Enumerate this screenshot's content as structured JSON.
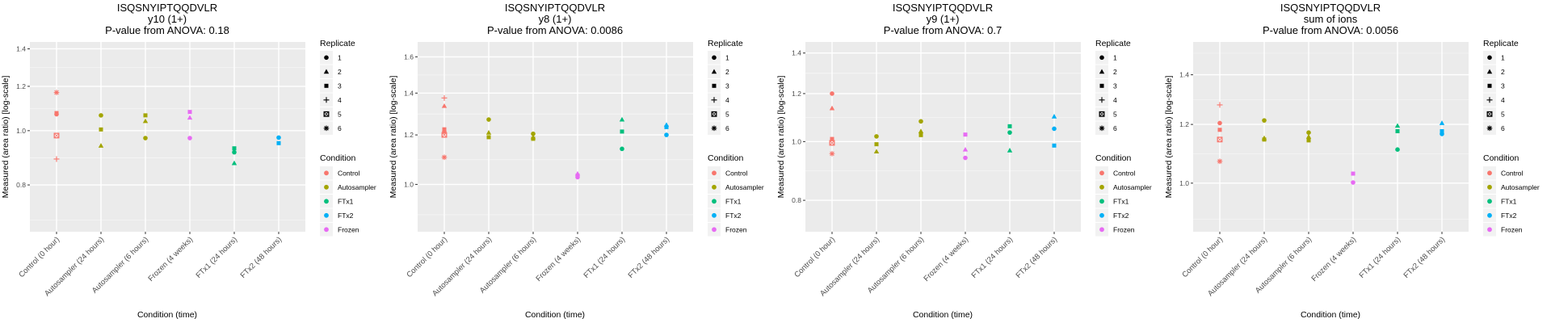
{
  "legend": {
    "replicate_title": "Replicate",
    "replicates": [
      {
        "label": "1",
        "shape": "circle"
      },
      {
        "label": "2",
        "shape": "triangle"
      },
      {
        "label": "3",
        "shape": "square"
      },
      {
        "label": "4",
        "shape": "plus"
      },
      {
        "label": "5",
        "shape": "square-cross"
      },
      {
        "label": "6",
        "shape": "asterisk"
      }
    ],
    "condition_title": "Condition",
    "conditions": [
      {
        "label": "Control",
        "color": "#F8766D"
      },
      {
        "label": "Autosampler",
        "color": "#A3A500"
      },
      {
        "label": "FTx1",
        "color": "#00BF7D"
      },
      {
        "label": "FTx2",
        "color": "#00B0F6"
      },
      {
        "label": "Frozen",
        "color": "#E76BF3"
      }
    ]
  },
  "chart_data": [
    {
      "type": "scatter",
      "title": "ISQSNYIPTQQDVLR",
      "subtitle": "y10 (1+)",
      "pvalue_label": "P-value from ANOVA: 0.18",
      "xlabel": "Condition (time)",
      "ylabel": "Measured (area ratio) [log-scale]",
      "yscale": "log",
      "ylim": [
        0.66,
        1.44
      ],
      "yticks": [
        0.8,
        1.0,
        1.2,
        1.4
      ],
      "ytick_labels": [
        "0.8",
        "1.0",
        "1.2",
        "1.4"
      ],
      "categories": [
        "Control (0 hour)",
        "Autosampler (24 hours)",
        "Autosampler (6 hours)",
        "Frozen (4 weeks)",
        "FTx1 (24 hours)",
        "FTx2 (48 hours)"
      ],
      "category_condition": [
        "Control",
        "Autosampler",
        "Autosampler",
        "Frozen",
        "FTx1",
        "FTx2"
      ],
      "points": [
        {
          "x": 0,
          "replicate": "6",
          "y": 1.17
        },
        {
          "x": 0,
          "replicate": "1",
          "y": 1.07
        },
        {
          "x": 0,
          "replicate": "3",
          "y": 1.075
        },
        {
          "x": 0,
          "replicate": "5",
          "y": 0.98
        },
        {
          "x": 0,
          "replicate": "4",
          "y": 0.89
        },
        {
          "x": 1,
          "replicate": "1",
          "y": 1.065
        },
        {
          "x": 1,
          "replicate": "3",
          "y": 1.005
        },
        {
          "x": 1,
          "replicate": "2",
          "y": 0.94
        },
        {
          "x": 2,
          "replicate": "3",
          "y": 1.065
        },
        {
          "x": 2,
          "replicate": "2",
          "y": 1.04
        },
        {
          "x": 2,
          "replicate": "1",
          "y": 0.97
        },
        {
          "x": 3,
          "replicate": "3",
          "y": 1.08
        },
        {
          "x": 3,
          "replicate": "2",
          "y": 1.055
        },
        {
          "x": 3,
          "replicate": "1",
          "y": 0.97
        },
        {
          "x": 4,
          "replicate": "3",
          "y": 0.93
        },
        {
          "x": 4,
          "replicate": "1",
          "y": 0.915
        },
        {
          "x": 4,
          "replicate": "2",
          "y": 0.875
        },
        {
          "x": 5,
          "replicate": "1",
          "y": 0.972
        },
        {
          "x": 5,
          "replicate": "3",
          "y": 0.95
        }
      ]
    },
    {
      "type": "scatter",
      "title": "ISQSNYIPTQQDVLR",
      "subtitle": "y8 (1+)",
      "pvalue_label": "P-value from ANOVA: 0.0086",
      "xlabel": "Condition (time)",
      "ylabel": "Measured (area ratio) [log-scale]",
      "yscale": "log",
      "ylim": [
        0.84,
        1.69
      ],
      "yticks": [
        1.0,
        1.2,
        1.4,
        1.6
      ],
      "ytick_labels": [
        "1.0",
        "1.2",
        "1.4",
        "1.6"
      ],
      "categories": [
        "Control (0 hour)",
        "Autosampler (24 hours)",
        "Autosampler (6 hours)",
        "Frozen (4 weeks)",
        "FTx1 (24 hours)",
        "FTx2 (48 hours)"
      ],
      "category_condition": [
        "Control",
        "Autosampler",
        "Autosampler",
        "Frozen",
        "FTx1",
        "FTx2"
      ],
      "points": [
        {
          "x": 0,
          "replicate": "4",
          "y": 1.375
        },
        {
          "x": 0,
          "replicate": "2",
          "y": 1.335
        },
        {
          "x": 0,
          "replicate": "3",
          "y": 1.225
        },
        {
          "x": 0,
          "replicate": "1",
          "y": 1.215
        },
        {
          "x": 0,
          "replicate": "5",
          "y": 1.2
        },
        {
          "x": 0,
          "replicate": "6",
          "y": 1.105
        },
        {
          "x": 1,
          "replicate": "1",
          "y": 1.27
        },
        {
          "x": 1,
          "replicate": "2",
          "y": 1.21
        },
        {
          "x": 1,
          "replicate": "3",
          "y": 1.19
        },
        {
          "x": 2,
          "replicate": "1",
          "y": 1.205
        },
        {
          "x": 2,
          "replicate": "2",
          "y": 1.19
        },
        {
          "x": 2,
          "replicate": "3",
          "y": 1.183
        },
        {
          "x": 3,
          "replicate": "2",
          "y": 1.04
        },
        {
          "x": 3,
          "replicate": "3",
          "y": 1.033
        },
        {
          "x": 3,
          "replicate": "1",
          "y": 1.027
        },
        {
          "x": 4,
          "replicate": "2",
          "y": 1.27
        },
        {
          "x": 4,
          "replicate": "3",
          "y": 1.215
        },
        {
          "x": 4,
          "replicate": "1",
          "y": 1.14
        },
        {
          "x": 5,
          "replicate": "2",
          "y": 1.245
        },
        {
          "x": 5,
          "replicate": "3",
          "y": 1.235
        },
        {
          "x": 5,
          "replicate": "1",
          "y": 1.2
        }
      ]
    },
    {
      "type": "scatter",
      "title": "ISQSNYIPTQQDVLR",
      "subtitle": "y9 (1+)",
      "pvalue_label": "P-value from ANOVA: 0.7",
      "xlabel": "Condition (time)",
      "ylabel": "Measured (area ratio) [log-scale]",
      "yscale": "log",
      "ylim": [
        0.71,
        1.46
      ],
      "yticks": [
        0.8,
        1.0,
        1.2,
        1.4
      ],
      "ytick_labels": [
        "0.8",
        "1.0",
        "1.2",
        "1.4"
      ],
      "categories": [
        "Control (0 hour)",
        "Autosampler (24 hours)",
        "Autosampler (6 hours)",
        "Frozen (4 weeks)",
        "FTx1 (24 hours)",
        "FTx2 (48 hours)"
      ],
      "category_condition": [
        "Control",
        "Autosampler",
        "Autosampler",
        "Frozen",
        "FTx1",
        "FTx2"
      ],
      "points": [
        {
          "x": 0,
          "replicate": "1",
          "y": 1.2
        },
        {
          "x": 0,
          "replicate": "2",
          "y": 1.135
        },
        {
          "x": 0,
          "replicate": "3",
          "y": 1.01
        },
        {
          "x": 0,
          "replicate": "5",
          "y": 0.995
        },
        {
          "x": 0,
          "replicate": "6",
          "y": 0.955
        },
        {
          "x": 1,
          "replicate": "1",
          "y": 1.02
        },
        {
          "x": 1,
          "replicate": "3",
          "y": 0.99
        },
        {
          "x": 1,
          "replicate": "2",
          "y": 0.963
        },
        {
          "x": 2,
          "replicate": "1",
          "y": 1.08
        },
        {
          "x": 2,
          "replicate": "2",
          "y": 1.04
        },
        {
          "x": 2,
          "replicate": "3",
          "y": 1.025
        },
        {
          "x": 3,
          "replicate": "3",
          "y": 1.027
        },
        {
          "x": 3,
          "replicate": "2",
          "y": 0.97
        },
        {
          "x": 3,
          "replicate": "1",
          "y": 0.94
        },
        {
          "x": 4,
          "replicate": "3",
          "y": 1.06
        },
        {
          "x": 4,
          "replicate": "1",
          "y": 1.035
        },
        {
          "x": 4,
          "replicate": "2",
          "y": 0.967
        },
        {
          "x": 5,
          "replicate": "2",
          "y": 1.1
        },
        {
          "x": 5,
          "replicate": "1",
          "y": 1.05
        },
        {
          "x": 5,
          "replicate": "3",
          "y": 0.985
        }
      ]
    },
    {
      "type": "scatter",
      "title": "ISQSNYIPTQQDVLR",
      "subtitle": "sum of ions",
      "pvalue_label": "P-value from ANOVA: 0.0056",
      "xlabel": "Condition (time)",
      "ylabel": "Measured (area ratio) [log-scale]",
      "yscale": "log",
      "ylim": [
        0.86,
        1.55
      ],
      "yticks": [
        1.0,
        1.2,
        1.4
      ],
      "ytick_labels": [
        "1.0",
        "1.2",
        "1.4"
      ],
      "categories": [
        "Control (0 hour)",
        "Autosampler (24 hours)",
        "Autosampler (6 hours)",
        "Frozen (4 weeks)",
        "FTx1 (24 hours)",
        "FTx2 (48 hours)"
      ],
      "category_condition": [
        "Control",
        "Autosampler",
        "Autosampler",
        "Frozen",
        "FTx1",
        "FTx2"
      ],
      "points": [
        {
          "x": 0,
          "replicate": "4",
          "y": 1.275
        },
        {
          "x": 0,
          "replicate": "1",
          "y": 1.205
        },
        {
          "x": 0,
          "replicate": "3",
          "y": 1.18
        },
        {
          "x": 0,
          "replicate": "5",
          "y": 1.145
        },
        {
          "x": 0,
          "replicate": "6",
          "y": 1.07
        },
        {
          "x": 1,
          "replicate": "1",
          "y": 1.215
        },
        {
          "x": 1,
          "replicate": "2",
          "y": 1.15
        },
        {
          "x": 1,
          "replicate": "3",
          "y": 1.145
        },
        {
          "x": 2,
          "replicate": "1",
          "y": 1.17
        },
        {
          "x": 2,
          "replicate": "2",
          "y": 1.155
        },
        {
          "x": 2,
          "replicate": "3",
          "y": 1.142
        },
        {
          "x": 3,
          "replicate": "3",
          "y": 1.03
        },
        {
          "x": 3,
          "replicate": "1",
          "y": 1.002
        },
        {
          "x": 4,
          "replicate": "2",
          "y": 1.195
        },
        {
          "x": 4,
          "replicate": "3",
          "y": 1.175
        },
        {
          "x": 4,
          "replicate": "1",
          "y": 1.11
        },
        {
          "x": 5,
          "replicate": "2",
          "y": 1.205
        },
        {
          "x": 5,
          "replicate": "3",
          "y": 1.175
        },
        {
          "x": 5,
          "replicate": "1",
          "y": 1.165
        }
      ]
    }
  ]
}
